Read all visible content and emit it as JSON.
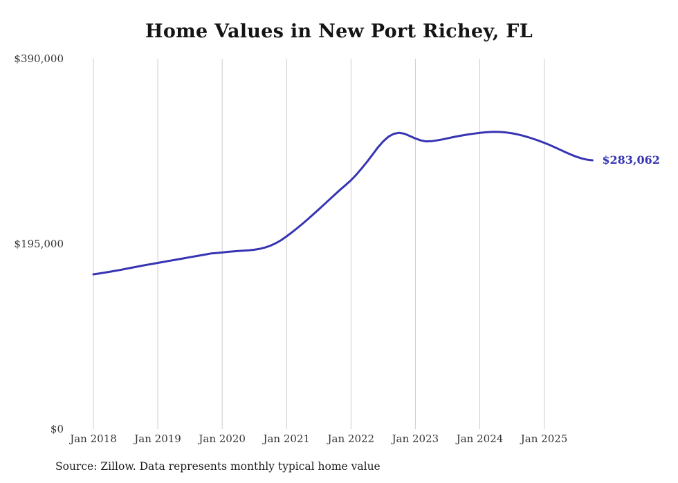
{
  "chart_data": {
    "type": "line",
    "title": "Home Values in New Port Richey, FL",
    "source": "Source: Zillow. Data represents monthly typical home value",
    "latest_value_label": "$283,062",
    "latest_value": 283062,
    "line_color": "#3634b2",
    "grid_color": "#cccccc",
    "grid": "vertical-only",
    "legend": "none",
    "ylim": [
      0,
      390000
    ],
    "x_start_month": "2018-01",
    "x_cadence": "monthly",
    "y_ticks": [
      {
        "label": "$390,000",
        "value": 390000
      },
      {
        "label": "$195,000",
        "value": 195000
      },
      {
        "label": "$0",
        "value": 0
      }
    ],
    "x_ticks": [
      {
        "label": "Jan 2018",
        "month_index": 0
      },
      {
        "label": "Jan 2019",
        "month_index": 12
      },
      {
        "label": "Jan 2020",
        "month_index": 24
      },
      {
        "label": "Jan 2021",
        "month_index": 36
      },
      {
        "label": "Jan 2022",
        "month_index": 48
      },
      {
        "label": "Jan 2023",
        "month_index": 60
      },
      {
        "label": "Jan 2024",
        "month_index": 72
      },
      {
        "label": "Jan 2025",
        "month_index": 84
      }
    ],
    "values": [
      163000,
      163800,
      164700,
      165600,
      166600,
      167600,
      168700,
      169800,
      170900,
      172000,
      173000,
      174000,
      175000,
      176000,
      177000,
      178000,
      179000,
      180000,
      181000,
      182000,
      183000,
      184000,
      185000,
      185500,
      186000,
      186600,
      187100,
      187500,
      187900,
      188300,
      188900,
      189800,
      191200,
      193200,
      195800,
      199000,
      203000,
      207200,
      211700,
      216400,
      221300,
      226300,
      231400,
      236600,
      241800,
      247000,
      252100,
      257100,
      262000,
      268000,
      274500,
      281500,
      289000,
      296500,
      303000,
      308000,
      311000,
      312000,
      311000,
      308500,
      306000,
      304000,
      303000,
      303200,
      304000,
      305000,
      306200,
      307400,
      308500,
      309500,
      310400,
      311200,
      311900,
      312500,
      312900,
      313000,
      312800,
      312300,
      311500,
      310400,
      309000,
      307400,
      305600,
      303600,
      301500,
      299200,
      296700,
      294100,
      291500,
      289000,
      286800,
      285000,
      283700,
      283062
    ]
  }
}
